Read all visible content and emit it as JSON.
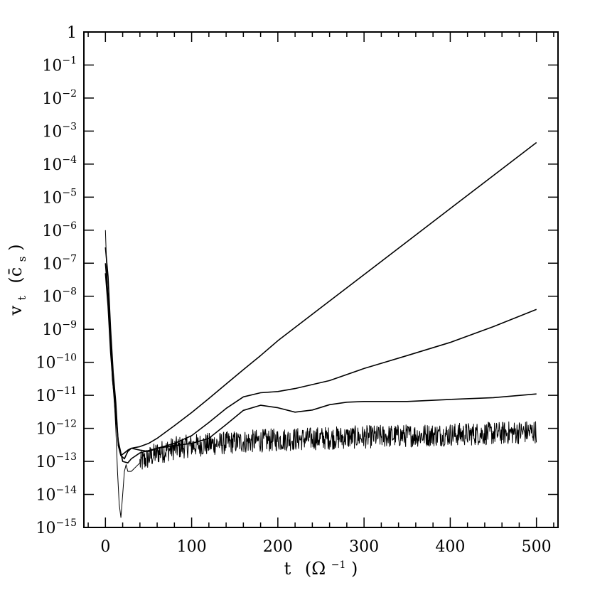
{
  "chart_data": {
    "type": "line",
    "title": "",
    "xlabel": "t  (Ω⁻¹)",
    "ylabel": "v_t (c̄_s)",
    "xlabel_parts": {
      "main": "t",
      "unit_open": "(Ω",
      "unit_exp": "−1",
      "unit_close": ")"
    },
    "ylabel_parts": {
      "main": "v",
      "sub": "t",
      "unit_open": "(c̄",
      "unit_sub": "s",
      "unit_close": ")"
    },
    "xlim": [
      -25,
      525
    ],
    "ylim": [
      1e-15,
      1
    ],
    "yscale": "log",
    "grid": false,
    "x_ticks": [
      {
        "value": 0,
        "label": "0"
      },
      {
        "value": 100,
        "label": "100"
      },
      {
        "value": 200,
        "label": "200"
      },
      {
        "value": 300,
        "label": "300"
      },
      {
        "value": 400,
        "label": "400"
      },
      {
        "value": 500,
        "label": "500"
      }
    ],
    "y_ticks": [
      {
        "value": 1,
        "base": "1",
        "exp": ""
      },
      {
        "value": 0.1,
        "base": "10",
        "exp": "−1"
      },
      {
        "value": 0.01,
        "base": "10",
        "exp": "−2"
      },
      {
        "value": 0.001,
        "base": "10",
        "exp": "−3"
      },
      {
        "value": 0.0001,
        "base": "10",
        "exp": "−4"
      },
      {
        "value": 1e-05,
        "base": "10",
        "exp": "−5"
      },
      {
        "value": 1e-06,
        "base": "10",
        "exp": "−6"
      },
      {
        "value": 1e-07,
        "base": "10",
        "exp": "−7"
      },
      {
        "value": 1e-08,
        "base": "10",
        "exp": "−8"
      },
      {
        "value": 1e-09,
        "base": "10",
        "exp": "−9"
      },
      {
        "value": 1e-10,
        "base": "10",
        "exp": "−10"
      },
      {
        "value": 1e-11,
        "base": "10",
        "exp": "−11"
      },
      {
        "value": 1e-12,
        "base": "10",
        "exp": "−12"
      },
      {
        "value": 1e-13,
        "base": "10",
        "exp": "−13"
      },
      {
        "value": 1e-14,
        "base": "10",
        "exp": "−14"
      },
      {
        "value": 1e-15,
        "base": "10",
        "exp": "−15"
      }
    ],
    "series": [
      {
        "style": "smooth",
        "points": [
          [
            0,
            3e-07
          ],
          [
            3,
            4e-08
          ],
          [
            6,
            1e-09
          ],
          [
            9,
            5e-11
          ],
          [
            12,
            6e-12
          ],
          [
            15,
            3e-13
          ],
          [
            18,
            1.5e-13
          ],
          [
            22,
            1.2e-13
          ],
          [
            26,
            2e-13
          ],
          [
            30,
            2.5e-13
          ],
          [
            40,
            2.8e-13
          ],
          [
            50,
            3.5e-13
          ],
          [
            60,
            5e-13
          ],
          [
            80,
            1.2e-12
          ],
          [
            100,
            3e-12
          ],
          [
            120,
            8e-12
          ],
          [
            140,
            2.2e-11
          ],
          [
            160,
            6e-11
          ],
          [
            180,
            1.6e-10
          ],
          [
            200,
            4.5e-10
          ],
          [
            250,
            4.5e-09
          ],
          [
            300,
            4.5e-08
          ],
          [
            350,
            4.5e-07
          ],
          [
            400,
            4.5e-06
          ],
          [
            450,
            4.5e-05
          ],
          [
            500,
            0.00045
          ]
        ]
      },
      {
        "style": "smooth",
        "points": [
          [
            0,
            1e-07
          ],
          [
            3,
            1e-08
          ],
          [
            6,
            4e-10
          ],
          [
            9,
            4e-11
          ],
          [
            12,
            4e-12
          ],
          [
            15,
            3e-13
          ],
          [
            18,
            1.5e-13
          ],
          [
            22,
            1.8e-13
          ],
          [
            26,
            2.2e-13
          ],
          [
            30,
            2.5e-13
          ],
          [
            40,
            2.2e-13
          ],
          [
            50,
            2e-13
          ],
          [
            60,
            2.5e-13
          ],
          [
            80,
            3.5e-13
          ],
          [
            100,
            6e-13
          ],
          [
            120,
            1.5e-12
          ],
          [
            140,
            4e-12
          ],
          [
            160,
            9e-12
          ],
          [
            180,
            1.2e-11
          ],
          [
            200,
            1.3e-11
          ],
          [
            220,
            1.6e-11
          ],
          [
            260,
            2.8e-11
          ],
          [
            300,
            6.5e-11
          ],
          [
            350,
            1.6e-10
          ],
          [
            400,
            4e-10
          ],
          [
            450,
            1.2e-09
          ],
          [
            500,
            4e-09
          ]
        ]
      },
      {
        "style": "smooth",
        "points": [
          [
            0,
            5e-08
          ],
          [
            3,
            5e-09
          ],
          [
            6,
            2e-10
          ],
          [
            9,
            2e-11
          ],
          [
            12,
            2e-12
          ],
          [
            15,
            4e-13
          ],
          [
            20,
            1e-13
          ],
          [
            26,
            9e-14
          ],
          [
            30,
            1.2e-13
          ],
          [
            40,
            1.8e-13
          ],
          [
            60,
            2.5e-13
          ],
          [
            80,
            3e-13
          ],
          [
            100,
            3.5e-13
          ],
          [
            120,
            5e-13
          ],
          [
            140,
            1.3e-12
          ],
          [
            160,
            3.5e-12
          ],
          [
            180,
            5e-12
          ],
          [
            200,
            4.2e-12
          ],
          [
            220,
            3.1e-12
          ],
          [
            240,
            3.6e-12
          ],
          [
            260,
            5.2e-12
          ],
          [
            280,
            6.2e-12
          ],
          [
            300,
            6.5e-12
          ],
          [
            350,
            6.5e-12
          ],
          [
            400,
            7.5e-12
          ],
          [
            450,
            8.5e-12
          ],
          [
            500,
            1.1e-11
          ]
        ]
      },
      {
        "style": "noisy",
        "points": [
          [
            0,
            1e-06
          ],
          [
            2,
            3e-08
          ],
          [
            4,
            2e-09
          ],
          [
            6,
            5e-10
          ],
          [
            8,
            3e-11
          ],
          [
            10,
            1e-11
          ],
          [
            12,
            1e-12
          ],
          [
            14,
            5e-14
          ],
          [
            16,
            5e-15
          ],
          [
            18,
            2e-15
          ],
          [
            20,
            1e-14
          ],
          [
            22,
            5e-14
          ],
          [
            24,
            8e-14
          ],
          [
            26,
            5e-14
          ],
          [
            30,
            5e-14
          ],
          [
            40,
            9e-14
          ],
          [
            60,
            1.8e-13
          ],
          [
            80,
            2.5e-13
          ],
          [
            100,
            3e-13
          ],
          [
            150,
            3.8e-13
          ],
          [
            200,
            4.5e-13
          ],
          [
            250,
            5e-13
          ],
          [
            300,
            5.5e-13
          ],
          [
            350,
            6e-13
          ],
          [
            400,
            6.5e-13
          ],
          [
            450,
            7e-13
          ],
          [
            500,
            8e-13
          ]
        ],
        "noise_band_decades": 0.35
      }
    ]
  }
}
